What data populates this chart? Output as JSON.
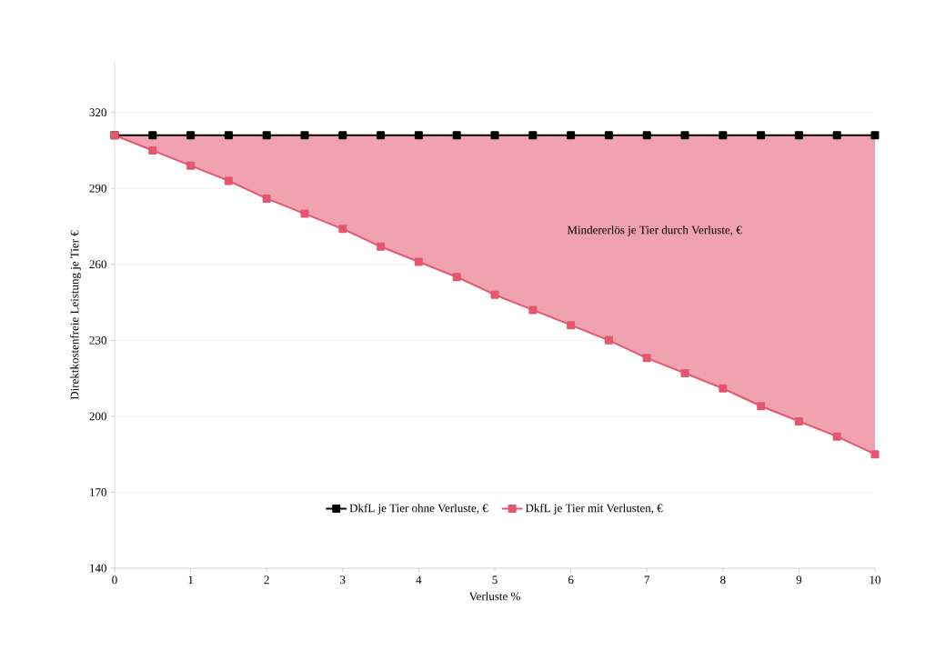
{
  "chart_data": {
    "type": "line",
    "xlabel": "Verluste %",
    "ylabel": "Direktkostenfreie Leistung je Tier €",
    "x": [
      0,
      0.5,
      1,
      1.5,
      2,
      2.5,
      3,
      3.5,
      4,
      4.5,
      5,
      5.5,
      6,
      6.5,
      7,
      7.5,
      8,
      8.5,
      9,
      9.5,
      10
    ],
    "series": [
      {
        "name": "DkfL je Tier ohne Verluste, €",
        "color": "#000000",
        "values": [
          311,
          311,
          311,
          311,
          311,
          311,
          311,
          311,
          311,
          311,
          311,
          311,
          311,
          311,
          311,
          311,
          311,
          311,
          311,
          311,
          311
        ]
      },
      {
        "name": "DkfL je Tier mit Verlusten, €",
        "color": "#e5566f",
        "values": [
          311,
          305,
          299,
          293,
          286,
          280,
          274,
          267,
          261,
          255,
          248,
          242,
          236,
          230,
          223,
          217,
          211,
          204,
          198,
          192,
          185
        ],
        "lower": [
          311,
          305,
          299,
          293,
          286,
          280,
          274,
          267,
          261,
          255,
          248,
          242,
          236,
          230,
          223,
          217,
          211,
          204,
          198,
          192,
          185
        ],
        "upper": [
          311,
          311,
          311,
          311,
          311,
          311,
          311,
          311,
          311,
          311,
          311,
          311,
          311,
          311,
          311,
          311,
          311,
          311,
          311,
          311,
          311
        ]
      }
    ],
    "annotations": [
      "Mindererlös je Tier durch Verluste, €"
    ],
    "xlim": [
      0,
      10
    ],
    "ylim": [
      140,
      340
    ],
    "xticks": [
      0,
      1,
      2,
      3,
      4,
      5,
      6,
      7,
      8,
      9,
      10
    ],
    "yticks": [
      140,
      170,
      200,
      230,
      260,
      290,
      320
    ],
    "grid": "y",
    "legend": "bottom",
    "marker": "square",
    "line_style": "solid"
  }
}
